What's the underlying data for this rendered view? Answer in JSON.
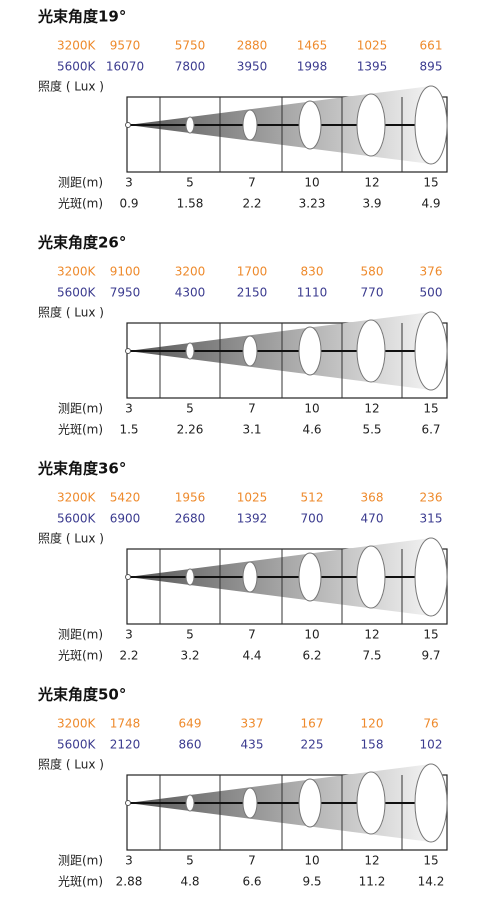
{
  "panels": [
    {
      "title": "光束角度19°",
      "warm": {
        "label": "3200K",
        "values": [
          9570,
          5750,
          2880,
          1465,
          1025,
          661
        ]
      },
      "cool": {
        "label": "5600K",
        "values": [
          16070,
          7800,
          3950,
          1998,
          1395,
          895
        ]
      },
      "lux_label": "照度 ( Lux )",
      "distance": {
        "label": "测距(m)",
        "values": [
          3,
          5,
          7,
          10,
          12,
          15
        ]
      },
      "spot": {
        "label": "光斑(m)",
        "values": [
          0.9,
          1.58,
          2.2,
          3.23,
          3.9,
          4.9
        ]
      }
    },
    {
      "title": "光束角度26°",
      "warm": {
        "label": "3200K",
        "values": [
          9100,
          3200,
          1700,
          830,
          580,
          376
        ]
      },
      "cool": {
        "label": "5600K",
        "values": [
          7950,
          4300,
          2150,
          1110,
          770,
          500
        ]
      },
      "lux_label": "照度 ( Lux )",
      "distance": {
        "label": "测距(m)",
        "values": [
          3,
          5,
          7,
          10,
          12,
          15
        ]
      },
      "spot": {
        "label": "光斑(m)",
        "values": [
          1.5,
          2.26,
          3.1,
          4.6,
          5.5,
          6.7
        ]
      }
    },
    {
      "title": "光束角度36°",
      "warm": {
        "label": "3200K",
        "values": [
          5420,
          1956,
          1025,
          512,
          368,
          236
        ]
      },
      "cool": {
        "label": "5600K",
        "values": [
          6900,
          2680,
          1392,
          700,
          470,
          315
        ]
      },
      "lux_label": "照度 ( Lux )",
      "distance": {
        "label": "测距(m)",
        "values": [
          3,
          5,
          7,
          10,
          12,
          15
        ]
      },
      "spot": {
        "label": "光斑(m)",
        "values": [
          2.2,
          3.2,
          4.4,
          6.2,
          7.5,
          9.7
        ]
      }
    },
    {
      "title": "光束角度50°",
      "warm": {
        "label": "3200K",
        "values": [
          1748,
          649,
          337,
          167,
          120,
          76
        ]
      },
      "cool": {
        "label": "5600K",
        "values": [
          2120,
          860,
          435,
          225,
          158,
          102
        ]
      },
      "lux_label": "照度 ( Lux )",
      "distance": {
        "label": "测距(m)",
        "values": [
          3,
          5,
          7,
          10,
          12,
          15
        ]
      },
      "spot": {
        "label": "光斑(m)",
        "values": [
          2.88,
          4.8,
          6.6,
          9.5,
          11.2,
          14.2
        ]
      }
    }
  ]
}
